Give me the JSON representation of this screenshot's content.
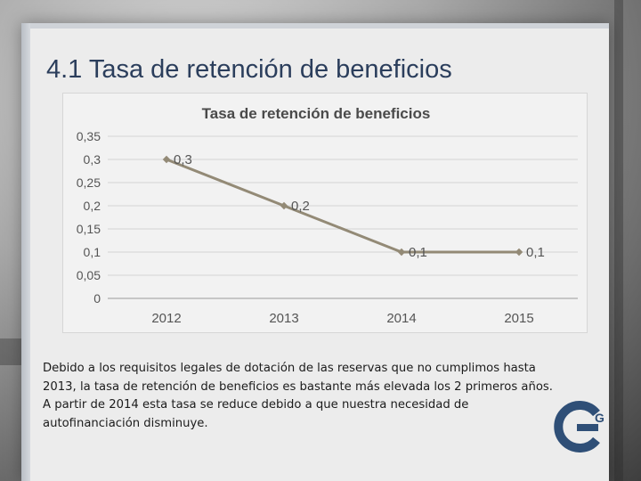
{
  "slide": {
    "title": "4.1 Tasa de retención de beneficios",
    "body_lines": [
      "Debido a los requisitos legales de dotación de las reservas que no cumplimos hasta",
      "2013, la tasa de retención de beneficios es bastante más elevada los 2 primeros años.",
      "A partir de 2014 esta tasa se reduce debido a que nuestra necesidad de",
      "autofinanciación disminuye."
    ]
  },
  "logo": {
    "icon": "logo-g-icon",
    "text": "G"
  },
  "colors": {
    "title": "#2b3e5c",
    "line": "#938a76",
    "logo": "#2f4f77"
  },
  "chart_data": {
    "type": "line",
    "title": "Tasa de retención de beneficios",
    "categories": [
      "2012",
      "2013",
      "2014",
      "2015"
    ],
    "values": [
      0.3,
      0.2,
      0.1,
      0.1
    ],
    "data_labels": [
      "0,3",
      "0,2",
      "0,1",
      "0,1"
    ],
    "yticks": [
      0,
      0.05,
      0.1,
      0.15,
      0.2,
      0.25,
      0.3,
      0.35
    ],
    "ytick_labels": [
      "0",
      "0,05",
      "0,1",
      "0,15",
      "0,2",
      "0,25",
      "0,3",
      "0,35"
    ],
    "ylim": [
      0,
      0.35
    ],
    "xlabel": "",
    "ylabel": "",
    "grid": true,
    "legend": "none"
  }
}
